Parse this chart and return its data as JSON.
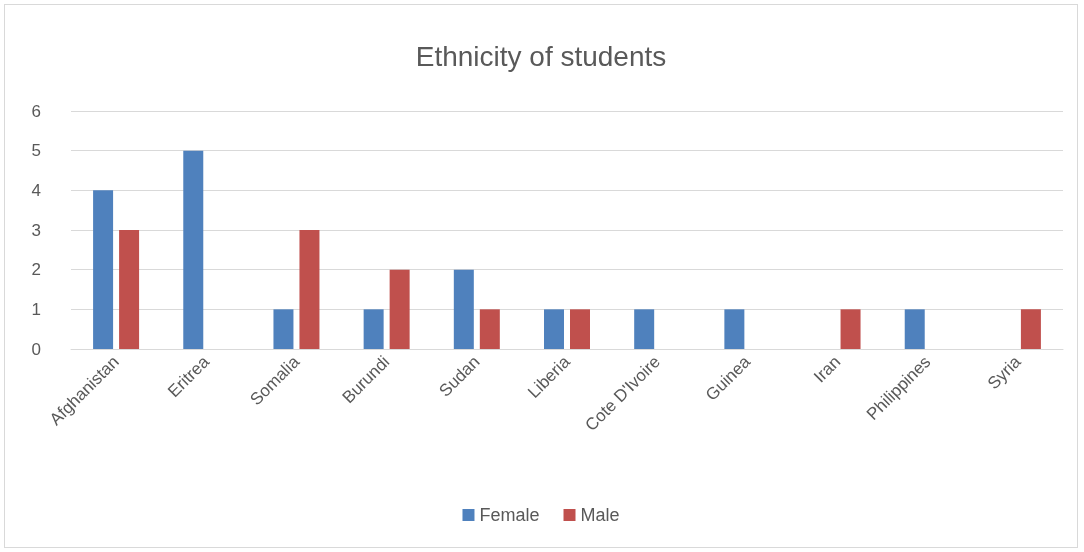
{
  "chart_data": {
    "type": "bar",
    "title": "Ethnicity of students",
    "categories": [
      "Afghanistan",
      "Eritrea",
      "Somalia",
      "Burundi",
      "Sudan",
      "Liberia",
      "Cote D'Ivoire",
      "Guinea",
      "Iran",
      "Philippines",
      "Syria"
    ],
    "series": [
      {
        "name": "Female",
        "color": "#4f81bd",
        "values": [
          4,
          5,
          1,
          1,
          2,
          1,
          1,
          1,
          0,
          1,
          0
        ]
      },
      {
        "name": "Male",
        "color": "#c0504d",
        "values": [
          3,
          0,
          3,
          2,
          1,
          1,
          0,
          0,
          1,
          0,
          1
        ]
      }
    ],
    "ylim": [
      0,
      6
    ],
    "yticks": [
      0,
      1,
      2,
      3,
      4,
      5,
      6
    ],
    "grid": "y",
    "legend": "bottom"
  }
}
